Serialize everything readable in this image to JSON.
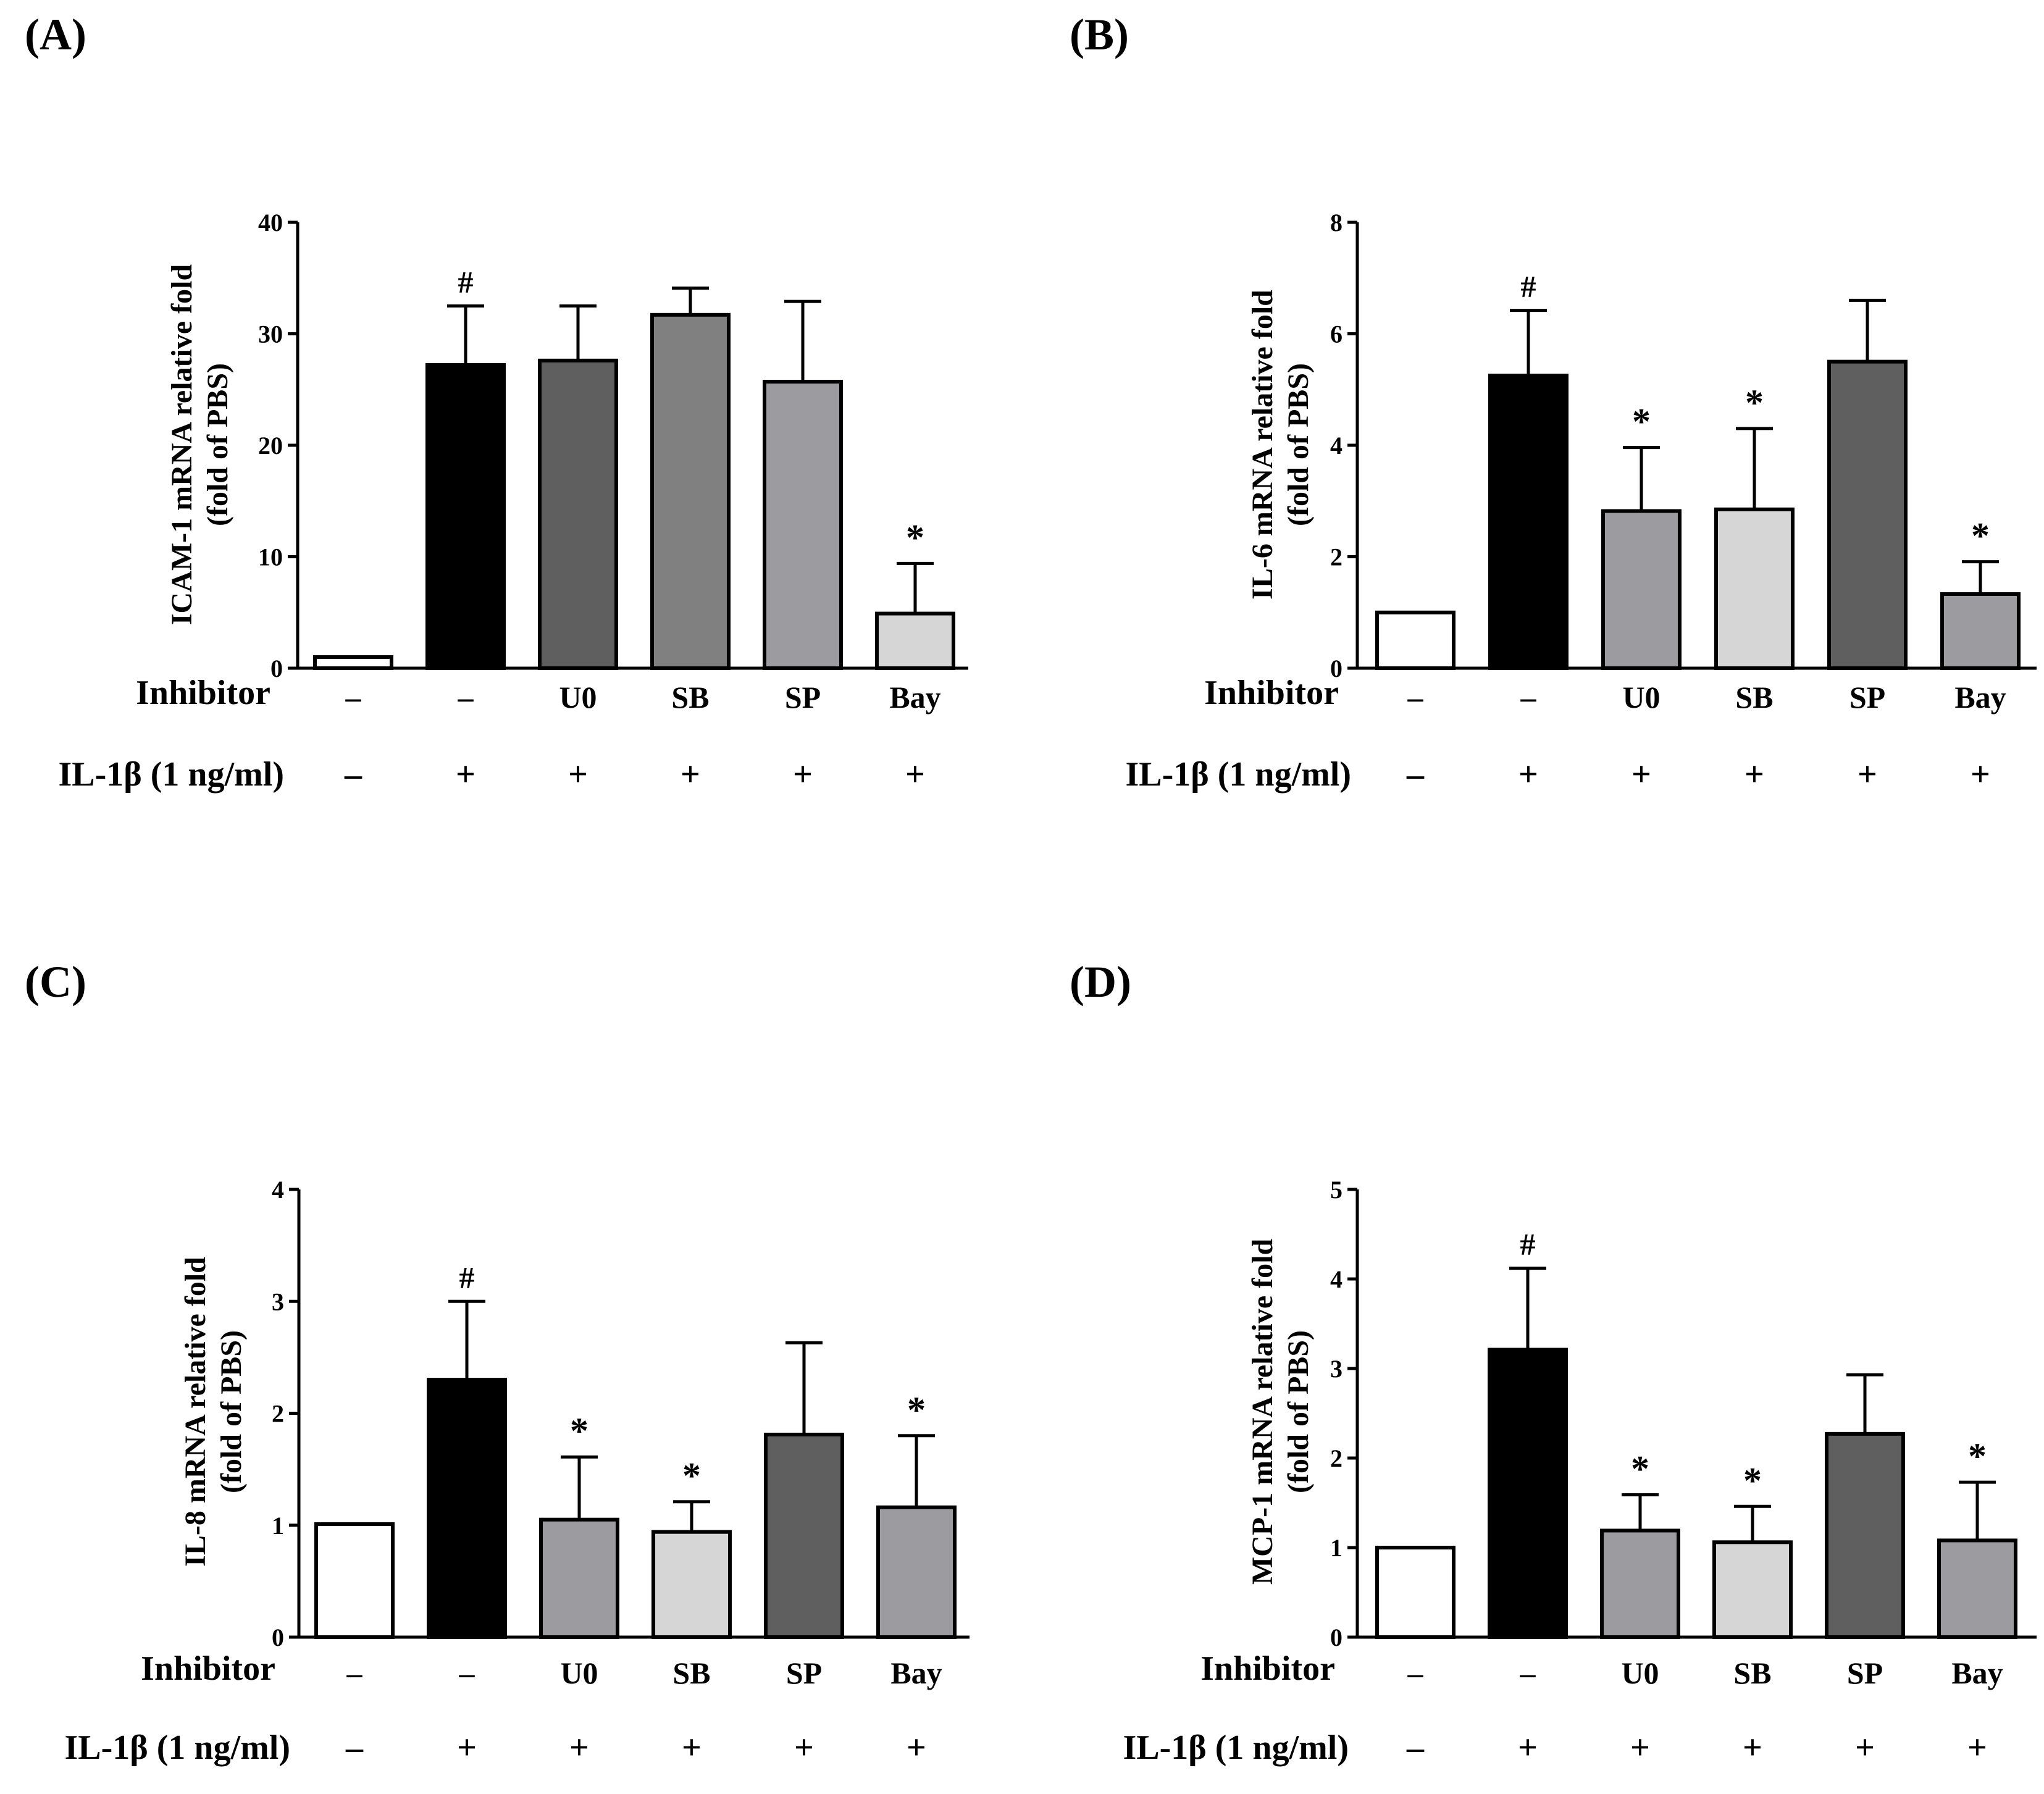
{
  "figure": {
    "row_labels": {
      "inhibitor": "Inhibitor",
      "treatment": "IL-1β (1 ng/ml)"
    },
    "inhibitor_values": [
      "–",
      "–",
      "U0",
      "SB",
      "SP",
      "Bay"
    ],
    "treatment_values": [
      "–",
      "+",
      "+",
      "+",
      "+",
      "+"
    ]
  },
  "colors": {
    "white": "#ffffff",
    "black": "#000000",
    "dark_gray": "#5f5f5f",
    "mid_gray": "#808080",
    "gray": "#9c9ca0",
    "light_gray": "#d6d6d6"
  },
  "chart_data": [
    {
      "panel_label": "(A)",
      "type": "bar",
      "ylabel_line1": "ICAM-1 mRNA relative fold",
      "ylabel_line2": "(fold of PBS)",
      "ylim": [
        0,
        40
      ],
      "yticks": [
        0,
        10,
        20,
        30,
        40
      ],
      "categories": [
        "–",
        "–",
        "U0",
        "SB",
        "SP",
        "Bay"
      ],
      "values": [
        1.0,
        27.2,
        27.6,
        31.7,
        25.7,
        4.9
      ],
      "errors": [
        0,
        5.3,
        4.9,
        2.4,
        7.2,
        4.5
      ],
      "annotations": [
        "",
        "#",
        "",
        "",
        "",
        "*"
      ],
      "fills": [
        "white",
        "black",
        "dark_gray",
        "mid_gray",
        "gray",
        "light_gray"
      ]
    },
    {
      "panel_label": "(B)",
      "type": "bar",
      "ylabel_line1": "IL-6 mRNA relative fold",
      "ylabel_line2": "(fold of PBS)",
      "ylim": [
        0,
        8
      ],
      "yticks": [
        0,
        2,
        4,
        6,
        8
      ],
      "categories": [
        "–",
        "–",
        "U0",
        "SB",
        "SP",
        "Bay"
      ],
      "values": [
        1.0,
        5.25,
        2.82,
        2.85,
        5.5,
        1.33
      ],
      "errors": [
        0,
        1.17,
        1.14,
        1.45,
        1.1,
        0.58
      ],
      "annotations": [
        "",
        "#",
        "*",
        "*",
        "",
        "*"
      ],
      "fills": [
        "white",
        "black",
        "gray",
        "light_gray",
        "dark_gray",
        "gray"
      ]
    },
    {
      "panel_label": "(C)",
      "type": "bar",
      "ylabel_line1": "IL-8 mRNA relative fold",
      "ylabel_line2": "(fold of PBS)",
      "ylim": [
        0,
        4
      ],
      "yticks": [
        0,
        1,
        2,
        3,
        4
      ],
      "categories": [
        "–",
        "–",
        "U0",
        "SB",
        "SP",
        "Bay"
      ],
      "values": [
        1.01,
        2.3,
        1.05,
        0.94,
        1.81,
        1.16
      ],
      "errors": [
        0,
        0.7,
        0.56,
        0.27,
        0.82,
        0.64
      ],
      "annotations": [
        "",
        "#",
        "*",
        "*",
        "",
        "*"
      ],
      "fills": [
        "white",
        "black",
        "gray",
        "light_gray",
        "dark_gray",
        "gray"
      ]
    },
    {
      "panel_label": "(D)",
      "type": "bar",
      "ylabel_line1": "MCP-1 mRNA relative fold",
      "ylabel_line2": "(fold of PBS)",
      "ylim": [
        0,
        5
      ],
      "yticks": [
        0,
        1,
        2,
        3,
        4,
        5
      ],
      "categories": [
        "–",
        "–",
        "U0",
        "SB",
        "SP",
        "Bay"
      ],
      "values": [
        1.0,
        3.21,
        1.19,
        1.06,
        2.27,
        1.08
      ],
      "errors": [
        0,
        0.91,
        0.4,
        0.4,
        0.66,
        0.65
      ],
      "annotations": [
        "",
        "#",
        "*",
        "*",
        "",
        "*"
      ],
      "fills": [
        "white",
        "black",
        "gray",
        "light_gray",
        "dark_gray",
        "gray"
      ]
    }
  ]
}
